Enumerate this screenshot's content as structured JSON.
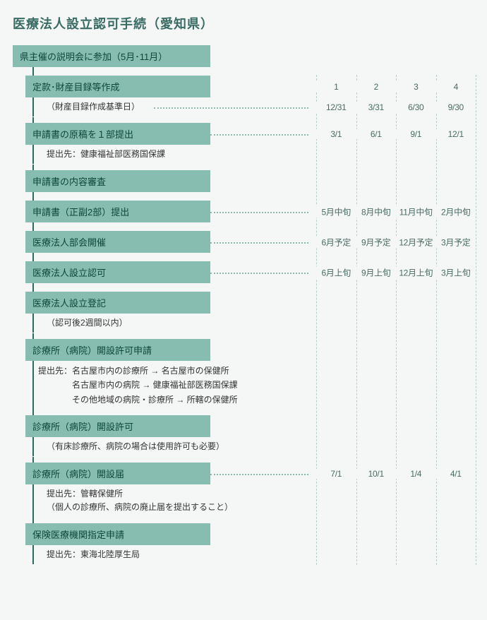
{
  "title": "医療法人設立認可手続（愛知県）",
  "columns": [
    "1",
    "2",
    "3",
    "4"
  ],
  "colors": {
    "box_bg": "#87bdb1",
    "box_text": "#0d473b",
    "line": "#2f6a5e",
    "dotted": "#8fb9b0",
    "dashed": "#b8cdc9",
    "page_bg": "#f4f7f5",
    "title_color": "#3a6b64"
  },
  "steps": [
    {
      "label": "県主催の説明会に参加（5月･11月）",
      "first": true
    },
    {
      "label": "定款･財産目録等作成",
      "header_cols": true,
      "sub": "（財産目録作成基準日）",
      "sub_dotted": true,
      "sub_dates": [
        "12/31",
        "3/31",
        "6/30",
        "9/30"
      ]
    },
    {
      "label": "申請書の原稿を１部提出",
      "dotted": true,
      "dates": [
        "3/1",
        "6/1",
        "9/1",
        "12/1"
      ],
      "sub": "提出先：健康福祉部医務国保課"
    },
    {
      "label": "申請書の内容審査"
    },
    {
      "label": "申請書（正副2部）提出",
      "dotted": true,
      "dates": [
        "5月中旬",
        "8月中旬",
        "11月中旬",
        "2月中旬"
      ]
    },
    {
      "label": "医療法人部会開催",
      "dotted": true,
      "dates": [
        "6月予定",
        "9月予定",
        "12月予定",
        "3月予定"
      ]
    },
    {
      "label": "医療法人設立認可",
      "dotted": true,
      "dates": [
        "6月上旬",
        "9月上旬",
        "12月上旬",
        "3月上旬"
      ]
    },
    {
      "label": "医療法人設立登記",
      "sub": "（認可後2週間以内）"
    },
    {
      "label": "診療所（病院）開設許可申請",
      "multi": [
        "提出先：名古屋市内の診療所 → 名古屋市の保健所",
        "　　　　名古屋市内の病院 → 健康福祉部医務国保課",
        "　　　　その他地域の病院・診療所 → 所轄の保健所"
      ]
    },
    {
      "label": "診療所（病院）開設許可",
      "sub": "（有床診療所、病院の場合は使用許可も必要）"
    },
    {
      "label": "診療所（病院）開設届",
      "dotted": true,
      "dates": [
        "7/1",
        "10/1",
        "1/4",
        "4/1"
      ],
      "multi": [
        "提出先：管轄保健所",
        "（個人の診療所、病院の廃止届を提出すること）"
      ],
      "multi_indent": true
    },
    {
      "label": "保険医療機関指定申請",
      "sub": "提出先：東海北陸厚生局",
      "last": true
    }
  ]
}
